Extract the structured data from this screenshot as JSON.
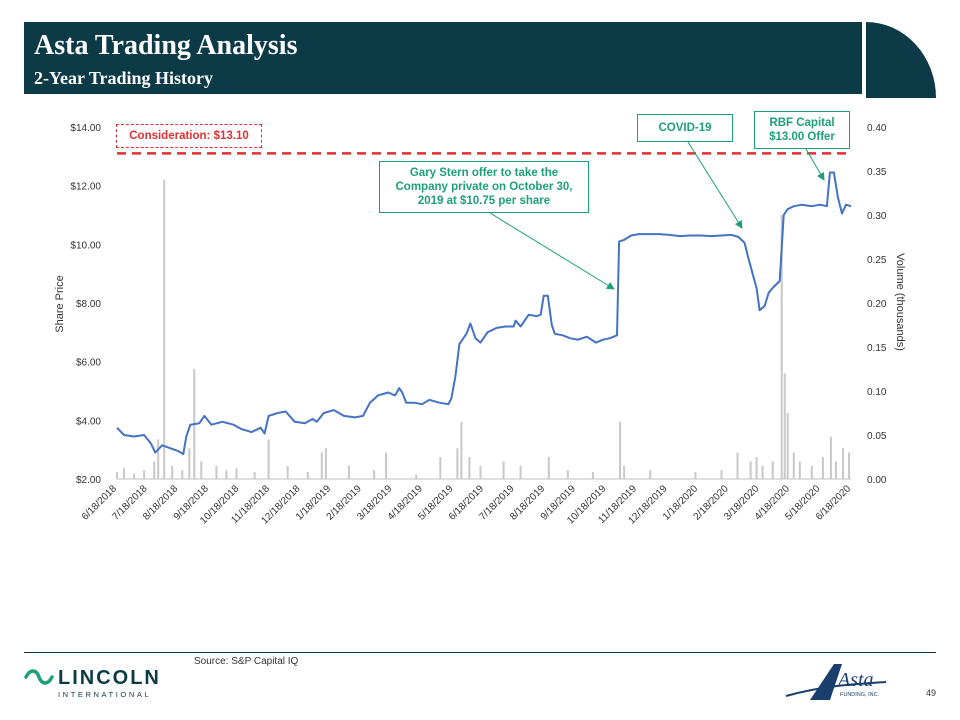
{
  "header": {
    "title": "Asta Trading Analysis",
    "subtitle": "2-Year Trading History"
  },
  "footer": {
    "source": "Source: S&P Capital IQ",
    "page_number": "49",
    "lincoln_logo_text": "LINCOLN",
    "lincoln_logo_subtext": "INTERNATIONAL",
    "asta_logo_text": "Asta",
    "asta_logo_subtext": "FUNDING, INC."
  },
  "colors": {
    "header_bg": "#0c3b47",
    "price_line": "#4472c4",
    "volume_bars": "#c8c8c8",
    "consideration_line": "#e03030",
    "annotation": "#1d9f7a"
  },
  "annotations": {
    "consideration": "Consideration: $13.10",
    "gary_stern": "Gary Stern offer to take the Company private on October 30, 2019 at $10.75 per share",
    "covid": "COVID-19",
    "rbf_line1": "RBF Capital",
    "rbf_line2": "$13.00 Offer"
  },
  "chart_data": {
    "type": "line",
    "title": "",
    "xlabel": "",
    "ylabel": "Share Price",
    "y2label": "Volume (thousands)",
    "ylim": [
      2,
      14
    ],
    "y2lim": [
      0,
      0.4
    ],
    "yticks": [
      "$2.00",
      "$4.00",
      "$6.00",
      "$8.00",
      "$10.00",
      "$12.00",
      "$14.00"
    ],
    "y2ticks": [
      "0.00",
      "0.05",
      "0.10",
      "0.15",
      "0.20",
      "0.25",
      "0.30",
      "0.35",
      "0.40"
    ],
    "xticks": [
      "6/18/2018",
      "7/18/2018",
      "8/18/2018",
      "9/18/2018",
      "10/18/2018",
      "11/18/2018",
      "12/18/2018",
      "1/18/2019",
      "2/18/2019",
      "3/18/2019",
      "4/18/2019",
      "5/18/2019",
      "6/18/2019",
      "7/18/2019",
      "8/18/2019",
      "9/18/2019",
      "10/18/2019",
      "11/18/2019",
      "12/18/2019",
      "1/18/2020",
      "2/18/2020",
      "3/18/2020",
      "4/18/2020",
      "5/18/2020",
      "6/18/2020"
    ],
    "reference_line": {
      "label": "Consideration: $13.10",
      "value": 13.1
    },
    "series": [
      {
        "name": "Share Price",
        "axis": "left",
        "points": [
          [
            "2018-06-18",
            3.75
          ],
          [
            "2018-06-25",
            3.5
          ],
          [
            "2018-07-05",
            3.45
          ],
          [
            "2018-07-15",
            3.5
          ],
          [
            "2018-07-22",
            3.2
          ],
          [
            "2018-07-26",
            2.9
          ],
          [
            "2018-08-02",
            3.15
          ],
          [
            "2018-08-10",
            3.05
          ],
          [
            "2018-08-18",
            2.95
          ],
          [
            "2018-08-23",
            2.85
          ],
          [
            "2018-08-26",
            3.45
          ],
          [
            "2018-08-30",
            3.85
          ],
          [
            "2018-09-08",
            3.9
          ],
          [
            "2018-09-13",
            4.15
          ],
          [
            "2018-09-20",
            3.85
          ],
          [
            "2018-10-01",
            3.95
          ],
          [
            "2018-10-12",
            3.85
          ],
          [
            "2018-10-20",
            3.7
          ],
          [
            "2018-10-30",
            3.6
          ],
          [
            "2018-11-08",
            3.75
          ],
          [
            "2018-11-12",
            3.55
          ],
          [
            "2018-11-16",
            4.15
          ],
          [
            "2018-11-25",
            4.25
          ],
          [
            "2018-12-03",
            4.3
          ],
          [
            "2018-12-12",
            3.95
          ],
          [
            "2018-12-22",
            3.9
          ],
          [
            "2018-12-30",
            4.05
          ],
          [
            "2019-01-03",
            3.95
          ],
          [
            "2019-01-10",
            4.25
          ],
          [
            "2019-01-20",
            4.35
          ],
          [
            "2019-01-30",
            4.15
          ],
          [
            "2019-02-10",
            4.1
          ],
          [
            "2019-02-18",
            4.15
          ],
          [
            "2019-02-25",
            4.6
          ],
          [
            "2019-03-05",
            4.85
          ],
          [
            "2019-03-15",
            4.95
          ],
          [
            "2019-03-22",
            4.85
          ],
          [
            "2019-03-26",
            5.1
          ],
          [
            "2019-03-29",
            4.95
          ],
          [
            "2019-04-02",
            4.6
          ],
          [
            "2019-04-10",
            4.6
          ],
          [
            "2019-04-18",
            4.55
          ],
          [
            "2019-04-25",
            4.7
          ],
          [
            "2019-05-05",
            4.6
          ],
          [
            "2019-05-14",
            4.55
          ],
          [
            "2019-05-17",
            4.75
          ],
          [
            "2019-05-21",
            5.5
          ],
          [
            "2019-05-25",
            6.6
          ],
          [
            "2019-06-01",
            6.95
          ],
          [
            "2019-06-05",
            7.3
          ],
          [
            "2019-06-10",
            6.8
          ],
          [
            "2019-06-15",
            6.65
          ],
          [
            "2019-06-22",
            7.0
          ],
          [
            "2019-07-01",
            7.15
          ],
          [
            "2019-07-10",
            7.2
          ],
          [
            "2019-07-18",
            7.2
          ],
          [
            "2019-07-20",
            7.4
          ],
          [
            "2019-07-25",
            7.2
          ],
          [
            "2019-08-02",
            7.6
          ],
          [
            "2019-08-10",
            7.55
          ],
          [
            "2019-08-14",
            7.6
          ],
          [
            "2019-08-17",
            8.25
          ],
          [
            "2019-08-21",
            8.25
          ],
          [
            "2019-08-25",
            7.25
          ],
          [
            "2019-08-28",
            6.95
          ],
          [
            "2019-09-05",
            6.9
          ],
          [
            "2019-09-12",
            6.8
          ],
          [
            "2019-09-20",
            6.75
          ],
          [
            "2019-09-29",
            6.85
          ],
          [
            "2019-10-08",
            6.65
          ],
          [
            "2019-10-15",
            6.75
          ],
          [
            "2019-10-22",
            6.8
          ],
          [
            "2019-10-29",
            6.9
          ],
          [
            "2019-10-31",
            10.1
          ],
          [
            "2019-11-05",
            10.15
          ],
          [
            "2019-11-12",
            10.3
          ],
          [
            "2019-11-20",
            10.35
          ],
          [
            "2019-11-30",
            10.35
          ],
          [
            "2019-12-10",
            10.35
          ],
          [
            "2019-12-20",
            10.32
          ],
          [
            "2019-12-31",
            10.28
          ],
          [
            "2020-01-10",
            10.3
          ],
          [
            "2020-01-20",
            10.3
          ],
          [
            "2020-01-31",
            10.28
          ],
          [
            "2020-02-10",
            10.3
          ],
          [
            "2020-02-20",
            10.32
          ],
          [
            "2020-02-27",
            10.25
          ],
          [
            "2020-03-04",
            10.05
          ],
          [
            "2020-03-08",
            9.5
          ],
          [
            "2020-03-12",
            9.0
          ],
          [
            "2020-03-16",
            8.5
          ],
          [
            "2020-03-19",
            7.75
          ],
          [
            "2020-03-24",
            7.9
          ],
          [
            "2020-03-28",
            8.35
          ],
          [
            "2020-04-02",
            8.55
          ],
          [
            "2020-04-08",
            8.75
          ],
          [
            "2020-04-12",
            11.0
          ],
          [
            "2020-04-16",
            11.2
          ],
          [
            "2020-04-22",
            11.3
          ],
          [
            "2020-04-30",
            11.35
          ],
          [
            "2020-05-10",
            11.3
          ],
          [
            "2020-05-18",
            11.35
          ],
          [
            "2020-05-25",
            11.3
          ],
          [
            "2020-05-28",
            12.45
          ],
          [
            "2020-06-01",
            12.45
          ],
          [
            "2020-06-05",
            11.6
          ],
          [
            "2020-06-09",
            11.05
          ],
          [
            "2020-06-13",
            11.35
          ],
          [
            "2020-06-18",
            11.3
          ]
        ]
      },
      {
        "name": "Volume",
        "axis": "right",
        "type": "bar",
        "points": [
          [
            "2018-06-18",
            0.008
          ],
          [
            "2018-06-25",
            0.012
          ],
          [
            "2018-07-05",
            0.006
          ],
          [
            "2018-07-15",
            0.01
          ],
          [
            "2018-07-25",
            0.02
          ],
          [
            "2018-07-29",
            0.045
          ],
          [
            "2018-08-04",
            0.34
          ],
          [
            "2018-08-12",
            0.015
          ],
          [
            "2018-08-22",
            0.01
          ],
          [
            "2018-08-29",
            0.035
          ],
          [
            "2018-09-03",
            0.125
          ],
          [
            "2018-09-10",
            0.02
          ],
          [
            "2018-09-25",
            0.015
          ],
          [
            "2018-10-05",
            0.01
          ],
          [
            "2018-10-15",
            0.012
          ],
          [
            "2018-11-02",
            0.008
          ],
          [
            "2018-11-16",
            0.045
          ],
          [
            "2018-12-05",
            0.015
          ],
          [
            "2018-12-25",
            0.008
          ],
          [
            "2019-01-08",
            0.03
          ],
          [
            "2019-01-12",
            0.035
          ],
          [
            "2019-02-04",
            0.015
          ],
          [
            "2019-03-01",
            0.01
          ],
          [
            "2019-03-13",
            0.03
          ],
          [
            "2019-04-12",
            0.005
          ],
          [
            "2019-05-06",
            0.025
          ],
          [
            "2019-05-23",
            0.035
          ],
          [
            "2019-05-27",
            0.065
          ],
          [
            "2019-06-04",
            0.025
          ],
          [
            "2019-06-15",
            0.015
          ],
          [
            "2019-07-08",
            0.02
          ],
          [
            "2019-07-25",
            0.015
          ],
          [
            "2019-08-22",
            0.025
          ],
          [
            "2019-09-10",
            0.01
          ],
          [
            "2019-10-05",
            0.008
          ],
          [
            "2019-11-01",
            0.065
          ],
          [
            "2019-11-05",
            0.015
          ],
          [
            "2019-12-01",
            0.01
          ],
          [
            "2020-01-15",
            0.008
          ],
          [
            "2020-02-10",
            0.01
          ],
          [
            "2020-02-26",
            0.03
          ],
          [
            "2020-03-10",
            0.02
          ],
          [
            "2020-03-16",
            0.025
          ],
          [
            "2020-03-22",
            0.015
          ],
          [
            "2020-04-01",
            0.02
          ],
          [
            "2020-04-10",
            0.3
          ],
          [
            "2020-04-13",
            0.12
          ],
          [
            "2020-04-16",
            0.075
          ],
          [
            "2020-04-22",
            0.03
          ],
          [
            "2020-04-28",
            0.02
          ],
          [
            "2020-05-10",
            0.015
          ],
          [
            "2020-05-21",
            0.025
          ],
          [
            "2020-05-29",
            0.048
          ],
          [
            "2020-06-03",
            0.02
          ],
          [
            "2020-06-10",
            0.035
          ],
          [
            "2020-06-16",
            0.03
          ]
        ]
      }
    ]
  }
}
